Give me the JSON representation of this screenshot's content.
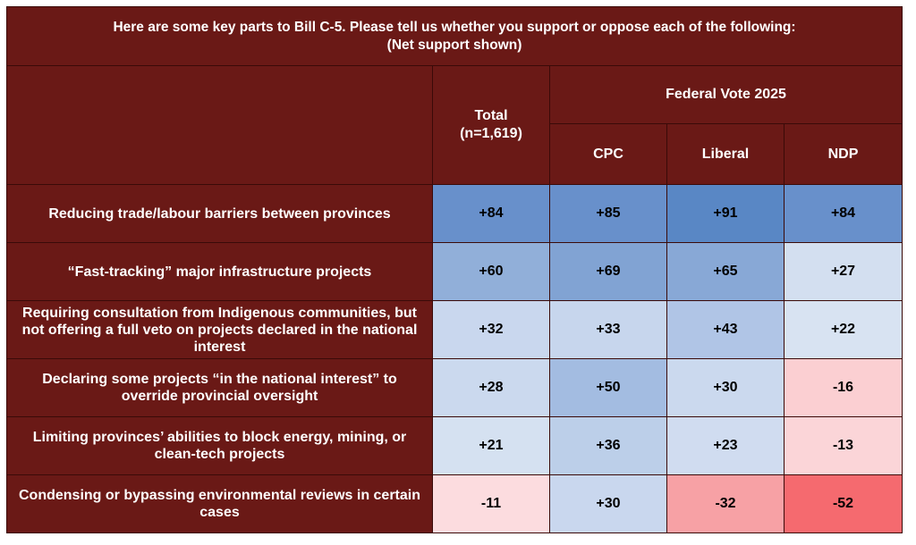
{
  "title_line1": "Here are some key parts to Bill C-5. Please tell us whether you support or oppose each of the following:",
  "title_line2": "(Net support shown)",
  "header": {
    "total_line1": "Total",
    "total_line2": "(n=1,619)",
    "group": "Federal Vote 2025",
    "cols": [
      "CPC",
      "Liberal",
      "NDP"
    ]
  },
  "rows": [
    {
      "label": "Reducing trade/labour barriers between provinces",
      "values": [
        "+84",
        "+85",
        "+91",
        "+84"
      ]
    },
    {
      "label": "“Fast-tracking” major infrastructure projects",
      "values": [
        "+60",
        "+69",
        "+65",
        "+27"
      ]
    },
    {
      "label": "Requiring consultation from Indigenous communities, but not offering a full veto on projects declared in the national interest",
      "values": [
        "+32",
        "+33",
        "+43",
        "+22"
      ]
    },
    {
      "label": "Declaring some projects “in the national interest” to override provincial oversight",
      "values": [
        "+28",
        "+50",
        "+30",
        "-16"
      ]
    },
    {
      "label": "Limiting provinces’ abilities to block energy, mining, or clean-tech projects",
      "values": [
        "+21",
        "+36",
        "+23",
        "-13"
      ]
    },
    {
      "label": "Condensing or bypassing environmental reviews in certain cases",
      "values": [
        "-11",
        "+30",
        "-32",
        "-52"
      ]
    }
  ],
  "colors": {
    "header_bg": "#6a1916",
    "cells": [
      [
        "#6890cb",
        "#6890cb",
        "#5987c5",
        "#6890cb"
      ],
      [
        "#91afd9",
        "#81a3d3",
        "#88a8d6",
        "#d3dff0"
      ],
      [
        "#c9d7ee",
        "#c7d6ed",
        "#b0c5e6",
        "#d8e3f2"
      ],
      [
        "#cbd9ee",
        "#a3bce1",
        "#cbd9ee",
        "#fbcfd2"
      ],
      [
        "#d5e1f1",
        "#bccfe9",
        "#d0dcf0",
        "#fbd5d8"
      ],
      [
        "#fcdcdf",
        "#c9d7ee",
        "#f7a1a5",
        "#f56a6f"
      ]
    ]
  }
}
